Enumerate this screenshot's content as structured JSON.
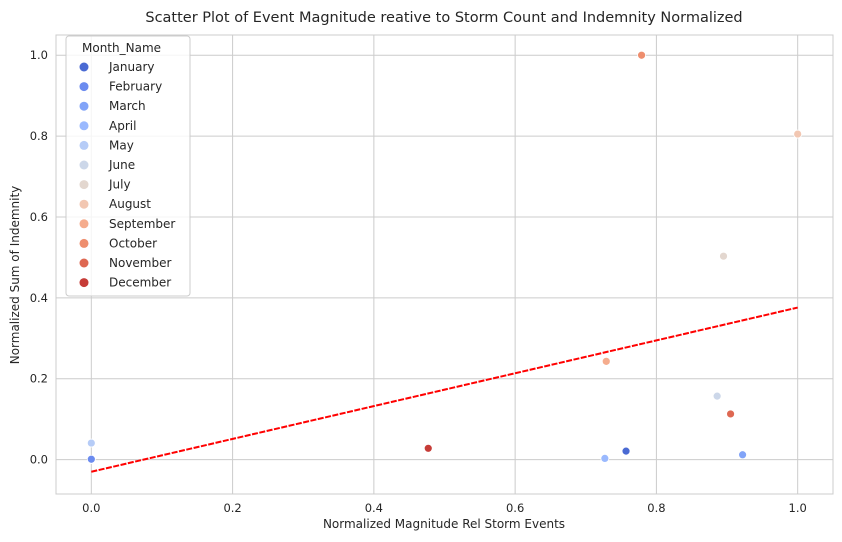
{
  "chart_data": {
    "type": "scatter",
    "title": "Scatter Plot of Event Magnitude reative to Storm Count and Indemnity Normalized",
    "xlabel": "Normalized Magnitude Rel Storm Events",
    "ylabel": "Normalized Sum of Indemnity",
    "xlim": [
      -0.05,
      1.05
    ],
    "ylim": [
      -0.085,
      1.05
    ],
    "xticks": [
      "0.0",
      "0.2",
      "0.4",
      "0.6",
      "0.8",
      "1.0"
    ],
    "xtick_values": [
      0.0,
      0.2,
      0.4,
      0.6,
      0.8,
      1.0
    ],
    "yticks": [
      "0.0",
      "0.2",
      "0.4",
      "0.6",
      "0.8",
      "1.0"
    ],
    "ytick_values": [
      0.0,
      0.2,
      0.4,
      0.6,
      0.8,
      1.0
    ],
    "grid": true,
    "legend": {
      "title": "Month_Name",
      "placement": "top-left",
      "entries": [
        {
          "name": "January",
          "color": "#4a6ad3"
        },
        {
          "name": "February",
          "color": "#6b8bef"
        },
        {
          "name": "March",
          "color": "#82a4f8"
        },
        {
          "name": "April",
          "color": "#9ab9fe"
        },
        {
          "name": "May",
          "color": "#b6ccf7"
        },
        {
          "name": "June",
          "color": "#ccd7e9"
        },
        {
          "name": "July",
          "color": "#e3d7cf"
        },
        {
          "name": "August",
          "color": "#f2c7b2"
        },
        {
          "name": "September",
          "color": "#f5ac8d"
        },
        {
          "name": "October",
          "color": "#ee8e6e"
        },
        {
          "name": "November",
          "color": "#de6852"
        },
        {
          "name": "December",
          "color": "#c63c37"
        }
      ]
    },
    "points": [
      {
        "month": "January",
        "x": 0.0,
        "y": 0.0
      },
      {
        "month": "January",
        "x": 0.757,
        "y": 0.021
      },
      {
        "month": "February",
        "x": 0.0,
        "y": 0.001
      },
      {
        "month": "March",
        "x": 0.922,
        "y": 0.012
      },
      {
        "month": "April",
        "x": 0.727,
        "y": 0.003
      },
      {
        "month": "May",
        "x": 0.0,
        "y": 0.041
      },
      {
        "month": "June",
        "x": 0.886,
        "y": 0.157
      },
      {
        "month": "July",
        "x": 0.895,
        "y": 0.503
      },
      {
        "month": "August",
        "x": 1.0,
        "y": 0.805
      },
      {
        "month": "September",
        "x": 0.729,
        "y": 0.243
      },
      {
        "month": "October",
        "x": 0.779,
        "y": 1.0
      },
      {
        "month": "November",
        "x": 0.905,
        "y": 0.113
      },
      {
        "month": "December",
        "x": 0.477,
        "y": 0.028
      }
    ],
    "trendline": {
      "style": "dashed",
      "color": "#ff0000",
      "x": [
        0.0,
        1.0
      ],
      "y": [
        -0.03,
        0.376
      ]
    }
  }
}
